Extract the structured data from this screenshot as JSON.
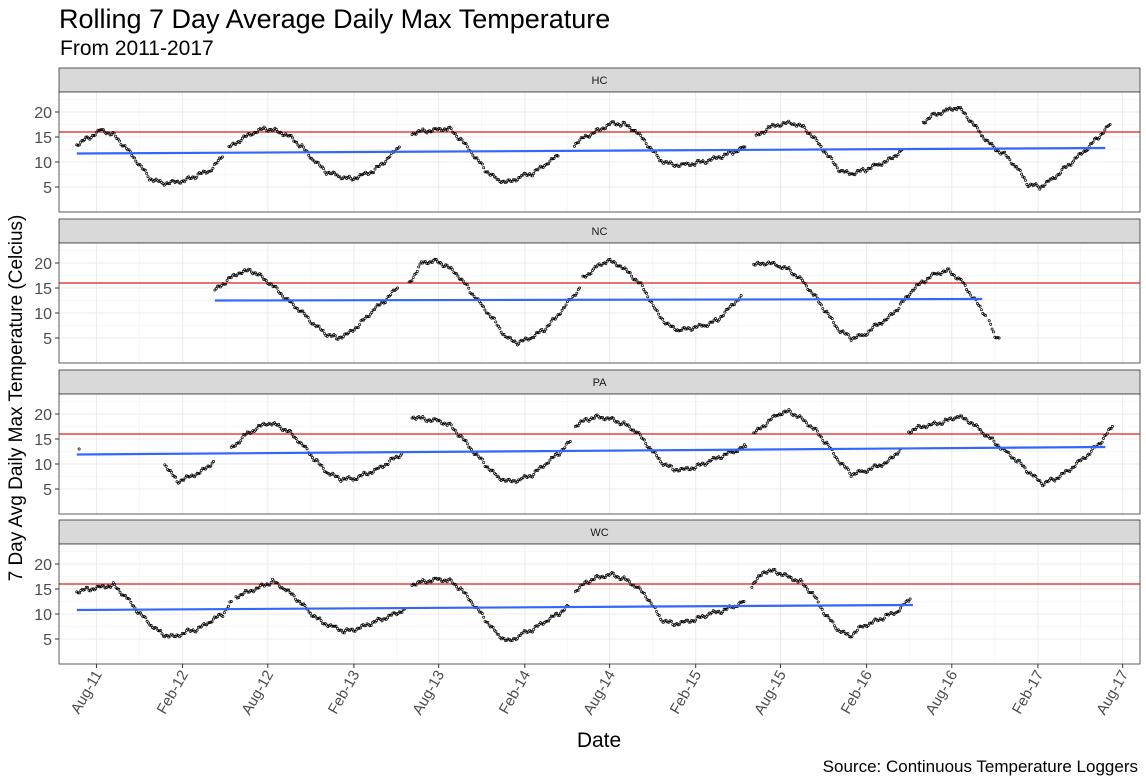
{
  "chart_data": {
    "type": "scatter",
    "title": "Rolling 7 Day Average Daily Max Temperature",
    "subtitle": "From 2011-2017",
    "xlabel": "Date",
    "ylabel": "7 Day Avg Daily Max Temperature (Celcius)",
    "caption": "Source: Continuous Temperature Loggers",
    "x_ticks": [
      "Aug-11",
      "Feb-12",
      "Aug-12",
      "Feb-13",
      "Aug-13",
      "Feb-14",
      "Aug-14",
      "Feb-15",
      "Aug-15",
      "Feb-16",
      "Aug-16",
      "Feb-17",
      "Aug-17"
    ],
    "y_ticks": [
      5,
      10,
      15,
      20
    ],
    "ylim": [
      0,
      24
    ],
    "xlim": [
      "2011-05-13",
      "2017-09-07"
    ],
    "reference_line": {
      "y": 16,
      "color": "#E41A1C"
    },
    "trend_color": "#3366FF",
    "grid": true,
    "panels": [
      {
        "name": "HC",
        "trend": {
          "x": [
            "2011-06-20",
            "2017-06-25"
          ],
          "y": [
            11.7,
            12.8
          ]
        },
        "segments": [
          {
            "x": [
              "2011-06-20",
              "2011-07-15",
              "2011-08-10",
              "2011-09-05",
              "2011-10-01",
              "2011-10-27",
              "2011-11-22",
              "2011-12-18",
              "2012-01-13",
              "2012-02-08",
              "2012-03-05",
              "2012-03-31",
              "2012-04-26"
            ],
            "y": [
              13.5,
              14.8,
              16.5,
              15.6,
              13.0,
              10.0,
              6.8,
              5.8,
              6.0,
              6.4,
              7.4,
              8.2,
              11.0
            ]
          },
          {
            "x": [
              "2012-05-10",
              "2012-06-05",
              "2012-07-01",
              "2012-07-27",
              "2012-08-22",
              "2012-09-17",
              "2012-10-13",
              "2012-11-08",
              "2012-12-04",
              "2012-12-30",
              "2013-01-25",
              "2013-02-20",
              "2013-03-18",
              "2013-04-13",
              "2013-05-09"
            ],
            "y": [
              12.8,
              14.5,
              15.8,
              16.7,
              16.2,
              15.2,
              13.0,
              10.2,
              8.0,
              7.2,
              6.6,
              7.5,
              8.4,
              10.5,
              13.0
            ]
          },
          {
            "x": [
              "2013-06-05",
              "2013-07-01",
              "2013-07-27",
              "2013-08-22",
              "2013-09-17",
              "2013-10-13",
              "2013-11-08",
              "2013-12-04",
              "2013-12-30",
              "2014-01-25",
              "2014-02-20",
              "2014-03-18",
              "2014-04-13"
            ],
            "y": [
              15.8,
              16.2,
              16.5,
              16.8,
              14.5,
              11.5,
              8.5,
              6.5,
              6.0,
              7.2,
              7.8,
              9.5,
              11.2
            ]
          },
          {
            "x": [
              "2014-05-18",
              "2014-06-13",
              "2014-07-09",
              "2014-08-04",
              "2014-08-30",
              "2014-09-25",
              "2014-10-21",
              "2014-11-16",
              "2014-12-12",
              "2015-01-07",
              "2015-02-02",
              "2015-02-28",
              "2015-03-26",
              "2015-04-21",
              "2015-05-17"
            ],
            "y": [
              13.5,
              15.2,
              16.4,
              17.8,
              17.6,
              16.2,
              13.5,
              10.5,
              9.5,
              9.5,
              9.8,
              10.2,
              11.0,
              12.0,
              13.0
            ]
          },
          {
            "x": [
              "2015-06-10",
              "2015-07-06",
              "2015-08-01",
              "2015-08-27",
              "2015-09-22",
              "2015-10-18",
              "2015-11-13",
              "2015-12-09",
              "2016-01-04",
              "2016-01-30",
              "2016-02-25",
              "2016-03-22",
              "2016-04-17"
            ],
            "y": [
              15.0,
              16.8,
              17.5,
              17.8,
              16.8,
              14.2,
              11.0,
              8.0,
              7.6,
              8.5,
              9.5,
              10.5,
              12.5
            ]
          },
          {
            "x": [
              "2016-06-01",
              "2016-06-25",
              "2016-07-20",
              "2016-08-14",
              "2016-09-08",
              "2016-10-03",
              "2016-10-28",
              "2016-11-22",
              "2016-12-17",
              "2017-01-11",
              "2017-02-05",
              "2017-03-02",
              "2017-03-27",
              "2017-04-21",
              "2017-05-16",
              "2017-06-10",
              "2017-07-05"
            ],
            "y": [
              18.0,
              19.5,
              20.3,
              21.0,
              18.5,
              15.5,
              13.0,
              11.5,
              9.0,
              5.5,
              5.0,
              6.5,
              8.5,
              10.5,
              12.5,
              15.0,
              17.5
            ]
          }
        ]
      },
      {
        "name": "NC",
        "trend": {
          "x": [
            "2012-04-10",
            "2016-10-05"
          ],
          "y": [
            12.5,
            12.8
          ]
        },
        "segments": [
          {
            "x": [
              "2012-04-10",
              "2012-05-06",
              "2012-06-01",
              "2012-06-27",
              "2012-07-23",
              "2012-08-18",
              "2012-09-13",
              "2012-10-09",
              "2012-11-04",
              "2012-11-30",
              "2012-12-26",
              "2013-01-21",
              "2013-02-16",
              "2013-03-14",
              "2013-04-09",
              "2013-05-05"
            ],
            "y": [
              14.5,
              16.5,
              18.0,
              18.5,
              17.0,
              15.0,
              12.5,
              10.5,
              8.0,
              6.0,
              5.0,
              6.0,
              8.0,
              10.5,
              12.5,
              15.0
            ]
          },
          {
            "x": [
              "2013-05-30",
              "2013-06-25",
              "2013-07-21",
              "2013-08-16",
              "2013-09-11",
              "2013-10-07",
              "2013-11-02",
              "2013-11-28",
              "2013-12-24",
              "2014-01-19",
              "2014-02-14",
              "2014-03-12",
              "2014-04-07",
              "2014-05-03",
              "2014-05-29"
            ],
            "y": [
              16.0,
              20.0,
              20.5,
              19.5,
              17.5,
              14.5,
              11.5,
              8.5,
              5.0,
              4.0,
              5.0,
              6.5,
              9.0,
              12.0,
              15.0
            ]
          },
          {
            "x": [
              "2014-06-05",
              "2014-07-01",
              "2014-07-27",
              "2014-08-22",
              "2014-09-17",
              "2014-10-13",
              "2014-11-08",
              "2014-12-04",
              "2014-12-30",
              "2015-01-25",
              "2015-02-20",
              "2015-03-18",
              "2015-04-13",
              "2015-05-09"
            ],
            "y": [
              17.0,
              19.0,
              20.5,
              19.5,
              17.5,
              15.0,
              10.5,
              7.5,
              6.5,
              7.0,
              7.5,
              8.5,
              11.0,
              13.5
            ]
          },
          {
            "x": [
              "2015-06-05",
              "2015-07-01",
              "2015-07-27",
              "2015-08-22",
              "2015-09-17",
              "2015-10-13",
              "2015-11-08",
              "2015-12-04",
              "2015-12-30",
              "2016-01-25",
              "2016-02-20",
              "2016-03-18",
              "2016-04-13",
              "2016-05-09",
              "2016-06-04",
              "2016-06-30",
              "2016-07-26",
              "2016-08-21",
              "2016-09-16",
              "2016-10-12"
            ],
            "y": [
              19.5,
              20.0,
              19.5,
              18.5,
              16.5,
              13.5,
              10.0,
              6.5,
              5.0,
              5.5,
              7.5,
              9.0,
              11.5,
              14.5,
              16.5,
              18.0,
              18.5,
              16.5,
              13.0,
              9.5
            ]
          },
          {
            "x": [
              "2016-10-20",
              "2016-11-01",
              "2016-11-10"
            ],
            "y": [
              8.0,
              5.5,
              5.0
            ]
          }
        ]
      },
      {
        "name": "PA",
        "trend": {
          "x": [
            "2011-06-20",
            "2017-06-25"
          ],
          "y": [
            11.9,
            13.4
          ]
        },
        "segments": [
          {
            "x": [
              "2011-06-25"
            ],
            "y": [
              13.0
            ]
          },
          {
            "x": [
              "2011-12-25",
              "2012-01-20",
              "2012-02-15",
              "2012-03-12",
              "2012-04-07"
            ],
            "y": [
              10.0,
              6.5,
              7.5,
              8.5,
              10.5
            ]
          },
          {
            "x": [
              "2012-05-15",
              "2012-06-10",
              "2012-07-06",
              "2012-08-01",
              "2012-08-27",
              "2012-09-22",
              "2012-10-18",
              "2012-11-13",
              "2012-12-09",
              "2013-01-04",
              "2013-01-30",
              "2013-02-25",
              "2013-03-23",
              "2013-04-18",
              "2013-05-14"
            ],
            "y": [
              13.0,
              15.5,
              17.0,
              18.2,
              17.5,
              16.0,
              13.5,
              10.5,
              8.0,
              7.0,
              7.0,
              8.0,
              9.0,
              10.5,
              12.0
            ]
          },
          {
            "x": [
              "2013-06-05",
              "2013-07-01",
              "2013-07-27",
              "2013-08-22",
              "2013-09-17",
              "2013-10-13",
              "2013-11-08",
              "2013-12-04",
              "2013-12-30",
              "2014-01-25",
              "2014-02-20",
              "2014-03-18",
              "2014-04-13",
              "2014-05-09"
            ],
            "y": [
              19.5,
              19.0,
              18.8,
              18.0,
              15.5,
              12.5,
              10.0,
              7.5,
              6.5,
              7.0,
              8.0,
              10.0,
              12.0,
              14.5
            ]
          },
          {
            "x": [
              "2014-05-20",
              "2014-06-15",
              "2014-07-11",
              "2014-08-06",
              "2014-09-01",
              "2014-09-27",
              "2014-10-23",
              "2014-11-18",
              "2014-12-14",
              "2015-01-09",
              "2015-02-04",
              "2015-03-02",
              "2015-03-28",
              "2015-04-23",
              "2015-05-19"
            ],
            "y": [
              17.5,
              19.0,
              19.5,
              19.0,
              18.0,
              16.5,
              13.5,
              10.5,
              9.0,
              9.0,
              9.5,
              10.5,
              11.5,
              12.5,
              13.5
            ]
          },
          {
            "x": [
              "2015-06-05",
              "2015-07-01",
              "2015-07-27",
              "2015-08-22",
              "2015-09-17",
              "2015-10-13",
              "2015-11-08",
              "2015-12-04",
              "2015-12-30",
              "2016-01-25",
              "2016-02-20",
              "2016-03-18",
              "2016-04-13"
            ],
            "y": [
              16.0,
              18.0,
              20.0,
              20.5,
              19.0,
              17.0,
              14.0,
              10.5,
              8.0,
              8.5,
              9.5,
              10.5,
              13.0
            ]
          },
          {
            "x": [
              "2016-05-01",
              "2016-05-27",
              "2016-06-22",
              "2016-07-18",
              "2016-08-13",
              "2016-09-08",
              "2016-10-04",
              "2016-10-30",
              "2016-11-25",
              "2016-12-21",
              "2017-01-16",
              "2017-02-11",
              "2017-03-09",
              "2017-04-04",
              "2017-04-30",
              "2017-05-26",
              "2017-06-21",
              "2017-07-10"
            ],
            "y": [
              16.5,
              17.5,
              18.0,
              18.5,
              19.5,
              18.5,
              16.5,
              14.5,
              12.5,
              10.5,
              8.0,
              6.0,
              7.0,
              8.5,
              10.5,
              12.5,
              15.0,
              17.5
            ]
          }
        ]
      },
      {
        "name": "WC",
        "trend": {
          "x": [
            "2011-06-20",
            "2016-05-10"
          ],
          "y": [
            10.8,
            11.8
          ]
        },
        "segments": [
          {
            "x": [
              "2011-06-20",
              "2011-07-16",
              "2011-08-11",
              "2011-09-06",
              "2011-10-02",
              "2011-10-28",
              "2011-11-23",
              "2011-12-19",
              "2012-01-14",
              "2012-02-09",
              "2012-03-06",
              "2012-04-01",
              "2012-04-27",
              "2012-05-15"
            ],
            "y": [
              14.5,
              15.0,
              15.5,
              15.8,
              13.5,
              10.5,
              8.0,
              6.0,
              5.5,
              6.5,
              7.0,
              8.5,
              10.0,
              12.5
            ]
          },
          {
            "x": [
              "2012-05-25",
              "2012-06-20",
              "2012-07-16",
              "2012-08-11",
              "2012-09-06",
              "2012-10-02",
              "2012-10-28",
              "2012-11-23",
              "2012-12-19",
              "2013-01-14",
              "2013-02-09",
              "2013-03-07",
              "2013-04-02",
              "2013-04-28",
              "2013-05-20"
            ],
            "y": [
              13.5,
              14.5,
              15.5,
              16.5,
              15.0,
              13.0,
              10.5,
              8.5,
              7.5,
              6.5,
              7.0,
              8.0,
              9.0,
              10.0,
              11.0
            ]
          },
          {
            "x": [
              "2013-06-05",
              "2013-07-01",
              "2013-07-27",
              "2013-08-22",
              "2013-09-17",
              "2013-10-13",
              "2013-11-08",
              "2013-12-04",
              "2013-12-30",
              "2014-01-25",
              "2014-02-20",
              "2014-03-18",
              "2014-04-13",
              "2014-05-05"
            ],
            "y": [
              16.0,
              16.5,
              17.0,
              16.8,
              15.0,
              12.0,
              9.0,
              6.0,
              4.5,
              6.0,
              7.0,
              8.5,
              10.0,
              11.5
            ]
          },
          {
            "x": [
              "2014-05-20",
              "2014-06-15",
              "2014-07-11",
              "2014-08-06",
              "2014-09-01",
              "2014-09-27",
              "2014-10-23",
              "2014-11-18",
              "2014-12-14",
              "2015-01-09",
              "2015-02-04",
              "2015-03-02",
              "2015-03-28",
              "2015-04-23",
              "2015-05-15"
            ],
            "y": [
              14.5,
              16.5,
              17.5,
              18.0,
              17.0,
              15.5,
              13.0,
              9.0,
              8.0,
              8.5,
              9.0,
              10.0,
              10.5,
              11.5,
              12.5
            ]
          },
          {
            "x": [
              "2015-06-01",
              "2015-06-27",
              "2015-07-23",
              "2015-08-18",
              "2015-09-13",
              "2015-10-09",
              "2015-11-04",
              "2015-11-30",
              "2015-12-26",
              "2016-01-21",
              "2016-02-16",
              "2016-03-13",
              "2016-04-08",
              "2016-05-04"
            ],
            "y": [
              15.5,
              18.5,
              18.5,
              17.5,
              16.5,
              14.0,
              10.0,
              7.0,
              5.5,
              7.5,
              8.5,
              9.5,
              10.5,
              13.0
            ]
          }
        ]
      }
    ]
  }
}
